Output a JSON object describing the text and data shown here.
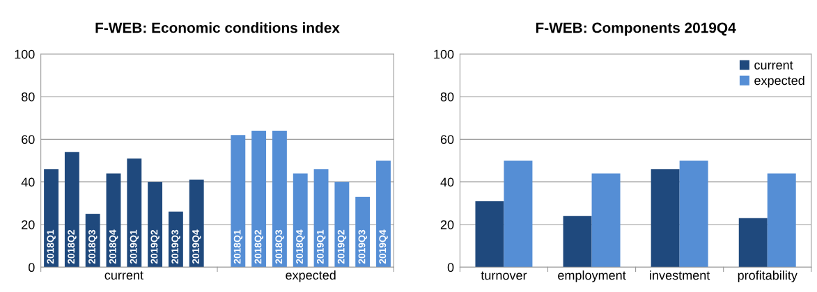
{
  "chart_data": [
    {
      "type": "bar",
      "title": "F-WEB: Economic conditions index",
      "categories": [
        "2018Q1",
        "2018Q2",
        "2018Q3",
        "2018Q4",
        "2019Q1",
        "2019Q2",
        "2019Q3",
        "2019Q4",
        null,
        "2018Q1",
        "2018Q2",
        "2018Q3",
        "2018Q4",
        "2019Q1",
        "2019Q2",
        "2019Q3",
        "2019Q4"
      ],
      "series": [
        {
          "name": "current",
          "color": "#1f497d",
          "values": [
            46,
            54,
            25,
            44,
            51,
            40,
            26,
            41,
            null,
            null,
            null,
            null,
            null,
            null,
            null,
            null,
            null
          ]
        },
        {
          "name": "expected",
          "color": "#558ed5",
          "values": [
            null,
            null,
            null,
            null,
            null,
            null,
            null,
            null,
            null,
            62,
            64,
            64,
            44,
            46,
            40,
            33,
            50
          ]
        }
      ],
      "ylim": [
        0,
        100
      ],
      "yticks": [
        0,
        20,
        40,
        60,
        80,
        100
      ],
      "grid": "y",
      "legend": false
    },
    {
      "type": "bar",
      "title": "F-WEB: Components 2019Q4",
      "categories": [
        "turnover",
        "employment",
        "investment",
        "profitability"
      ],
      "series": [
        {
          "name": "current",
          "color": "#1f497d",
          "values": [
            31,
            24,
            46,
            23
          ]
        },
        {
          "name": "expected",
          "color": "#558ed5",
          "values": [
            50,
            44,
            50,
            44
          ]
        }
      ],
      "ylim": [
        0,
        100
      ],
      "yticks": [
        0,
        20,
        40,
        60,
        80,
        100
      ],
      "grid": "y",
      "legend": "top right"
    }
  ]
}
